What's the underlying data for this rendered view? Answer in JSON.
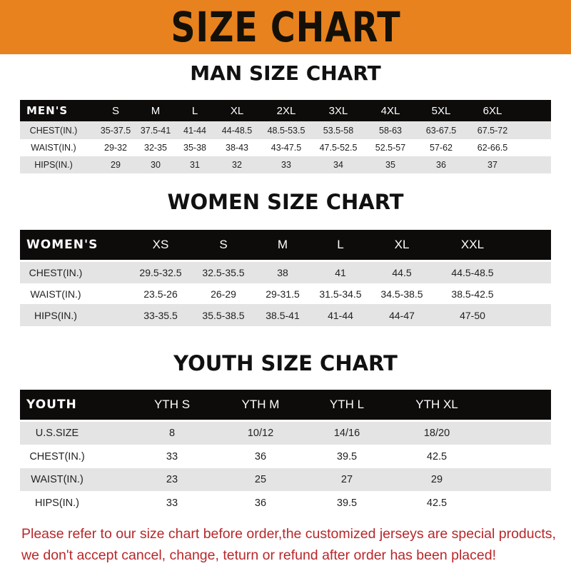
{
  "title": "SIZE CHART",
  "banner_color": "#e8821e",
  "men": {
    "heading": "MAN SIZE CHART",
    "header": [
      "MEN'S",
      "S",
      "M",
      "L",
      "XL",
      "2XL",
      "3XL",
      "4XL",
      "5XL",
      "6XL"
    ],
    "rows": [
      [
        "CHEST(IN.)",
        "35-37.5",
        "37.5-41",
        "41-44",
        "44-48.5",
        "48.5-53.5",
        "53.5-58",
        "58-63",
        "63-67.5",
        "67.5-72"
      ],
      [
        "WAIST(IN.)",
        "29-32",
        "32-35",
        "35-38",
        "38-43",
        "43-47.5",
        "47.5-52.5",
        "52.5-57",
        "57-62",
        "62-66.5"
      ],
      [
        "HIPS(IN.)",
        "29",
        "30",
        "31",
        "32",
        "33",
        "34",
        "35",
        "36",
        "37"
      ]
    ]
  },
  "women": {
    "heading": "WOMEN SIZE CHART",
    "header": [
      "WOMEN'S",
      "XS",
      "S",
      "M",
      "L",
      "XL",
      "XXL"
    ],
    "rows": [
      [
        "CHEST(IN.)",
        "29.5-32.5",
        "32.5-35.5",
        "38",
        "41",
        "44.5",
        "44.5-48.5"
      ],
      [
        "WAIST(IN.)",
        "23.5-26",
        "26-29",
        "29-31.5",
        "31.5-34.5",
        "34.5-38.5",
        "38.5-42.5"
      ],
      [
        "HIPS(IN.)",
        "33-35.5",
        "35.5-38.5",
        "38.5-41",
        "41-44",
        "44-47",
        "47-50"
      ]
    ]
  },
  "youth": {
    "heading": "YOUTH SIZE CHART",
    "header": [
      "YOUTH",
      "YTH S",
      "YTH M",
      "YTH L",
      "YTH XL"
    ],
    "rows": [
      [
        "U.S.SIZE",
        "8",
        "10/12",
        "14/16",
        "18/20"
      ],
      [
        "CHEST(IN.)",
        "33",
        "36",
        "39.5",
        "42.5"
      ],
      [
        "WAIST(IN.)",
        "23",
        "25",
        "27",
        "29"
      ],
      [
        "HIPS(IN.)",
        "33",
        "36",
        "39.5",
        "42.5"
      ]
    ]
  },
  "notice": [
    "Please refer to our size chart before order,the customized jerseys are special products,",
    "we don't accept cancel, change, teturn or refund after order has been placed!"
  ]
}
